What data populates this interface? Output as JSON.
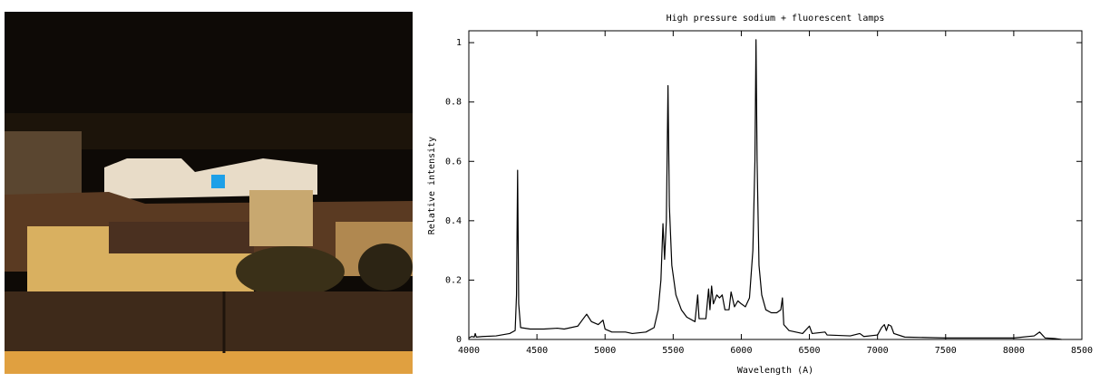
{
  "chart_data": {
    "type": "line",
    "title": "High pressure sodium + fluorescent lamps",
    "x_label": "Wavelength (A)",
    "y_label": "Relative intensity",
    "x": [
      4000,
      4020,
      4040,
      4047,
      4055,
      4100,
      4200,
      4300,
      4340,
      4350,
      4358,
      4366,
      4380,
      4450,
      4550,
      4650,
      4700,
      4800,
      4840,
      4865,
      4900,
      4950,
      4985,
      5000,
      5050,
      5150,
      5200,
      5300,
      5360,
      5390,
      5410,
      5425,
      5437,
      5450,
      5462,
      5472,
      5490,
      5520,
      5560,
      5600,
      5660,
      5680,
      5690,
      5740,
      5760,
      5770,
      5782,
      5795,
      5820,
      5840,
      5860,
      5880,
      5910,
      5925,
      5950,
      5975,
      6000,
      6030,
      6060,
      6085,
      6100,
      6108,
      6116,
      6130,
      6150,
      6180,
      6220,
      6260,
      6290,
      6302,
      6312,
      6350,
      6450,
      6500,
      6520,
      6615,
      6630,
      6800,
      6870,
      6900,
      7000,
      7030,
      7050,
      7065,
      7080,
      7100,
      7120,
      7200,
      7500,
      8000,
      8150,
      8190,
      8230,
      8300,
      8350
    ],
    "series": [
      {
        "color": "#000000",
        "values": [
          0.005,
          0.01,
          0.008,
          0.02,
          0.008,
          0.01,
          0.012,
          0.02,
          0.03,
          0.15,
          0.57,
          0.12,
          0.04,
          0.035,
          0.035,
          0.038,
          0.035,
          0.045,
          0.07,
          0.085,
          0.06,
          0.05,
          0.065,
          0.035,
          0.025,
          0.025,
          0.02,
          0.025,
          0.04,
          0.1,
          0.2,
          0.39,
          0.27,
          0.4,
          0.855,
          0.45,
          0.25,
          0.15,
          0.1,
          0.075,
          0.06,
          0.15,
          0.07,
          0.07,
          0.17,
          0.1,
          0.18,
          0.12,
          0.15,
          0.14,
          0.15,
          0.1,
          0.1,
          0.16,
          0.11,
          0.13,
          0.12,
          0.11,
          0.14,
          0.3,
          0.6,
          1.01,
          0.6,
          0.25,
          0.15,
          0.1,
          0.09,
          0.09,
          0.1,
          0.14,
          0.05,
          0.03,
          0.02,
          0.045,
          0.02,
          0.025,
          0.015,
          0.012,
          0.02,
          0.01,
          0.015,
          0.04,
          0.05,
          0.03,
          0.05,
          0.045,
          0.02,
          0.008,
          0.005,
          0.005,
          0.012,
          0.025,
          0.005,
          0.003,
          0.0
        ]
      }
    ],
    "xlim": [
      4000,
      8500
    ],
    "xticks": [
      4000,
      4500,
      5000,
      5500,
      6000,
      6500,
      7000,
      7500,
      8000,
      8500
    ],
    "ylim": [
      0,
      1.04
    ],
    "yticks": [
      0,
      0.2,
      0.4,
      0.6,
      0.8,
      1
    ]
  }
}
